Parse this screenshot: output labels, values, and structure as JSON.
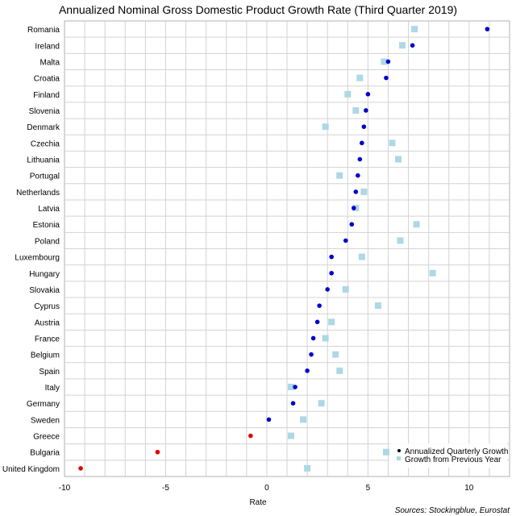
{
  "chart_data": {
    "type": "scatter",
    "title": "Annualized Nominal Gross Domestic Product Growth Rate (Third Quarter 2019)",
    "xlabel": "Rate",
    "source": "Sources: Stockingblue, Eurostat",
    "xlim": [
      -10,
      12
    ],
    "x_ticks": [
      -10,
      -5,
      0,
      5,
      10
    ],
    "grid": true,
    "legend_position": "bottom-right",
    "categories": [
      "Romania",
      "Ireland",
      "Malta",
      "Croatia",
      "Finland",
      "Slovenia",
      "Denmark",
      "Czechia",
      "Lithuania",
      "Portugal",
      "Netherlands",
      "Latvia",
      "Estonia",
      "Poland",
      "Luxembourg",
      "Hungary",
      "Slovakia",
      "Cyprus",
      "Austria",
      "France",
      "Belgium",
      "Spain",
      "Italy",
      "Germany",
      "Sweden",
      "Greece",
      "Bulgaria",
      "United Kingdom"
    ],
    "series": [
      {
        "name": "Annualized Quarterly Growth",
        "marker": "circle",
        "color": "#0000cc",
        "negative_color": "#dd0000",
        "values": [
          10.9,
          7.2,
          6.0,
          5.9,
          5.0,
          4.9,
          4.8,
          4.7,
          4.6,
          4.5,
          4.4,
          4.3,
          4.2,
          3.9,
          3.2,
          3.2,
          3.0,
          2.6,
          2.5,
          2.3,
          2.2,
          2.0,
          1.4,
          1.3,
          0.1,
          -0.8,
          -5.4,
          -9.2
        ]
      },
      {
        "name": "Growth from Previous Year",
        "marker": "square",
        "color": "#add8e6",
        "values": [
          7.3,
          6.7,
          5.8,
          4.6,
          4.0,
          4.4,
          2.9,
          6.2,
          6.5,
          3.6,
          4.8,
          4.4,
          7.4,
          6.6,
          4.7,
          8.2,
          3.9,
          5.5,
          3.2,
          2.9,
          3.4,
          3.6,
          1.2,
          2.7,
          1.8,
          1.2,
          5.9,
          2.0
        ]
      }
    ]
  }
}
